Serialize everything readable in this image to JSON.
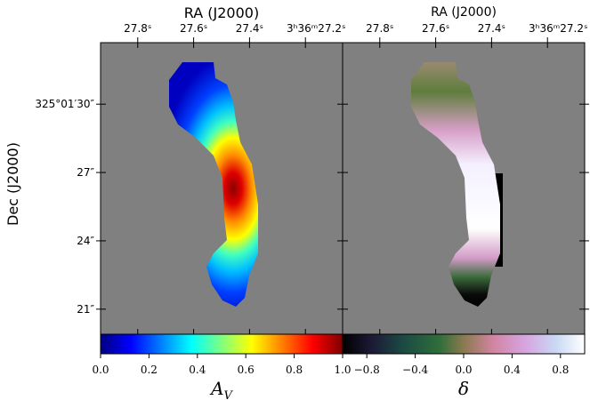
{
  "chart_data": [
    {
      "type": "image",
      "x_label": "RA (J2000)",
      "y_label": "Dec (J2000)",
      "xlim": [
        27.933,
        27.067
      ],
      "ylim": [
        19.9,
        32.7
      ],
      "xticks": [
        {
          "value": 27.8,
          "label": "27.8ˢ"
        },
        {
          "value": 27.6,
          "label": "27.6ˢ"
        },
        {
          "value": 27.4,
          "label": "27.4ˢ"
        },
        {
          "value": 27.2,
          "label": "3ʰ36ᵐ27.2ˢ"
        }
      ],
      "yticks": [
        {
          "value": 30,
          "label": "325°01′30″"
        },
        {
          "value": 27,
          "label": "27″"
        },
        {
          "value": 24,
          "label": "24″"
        },
        {
          "value": 21,
          "label": "21″"
        }
      ],
      "colorbar": {
        "label": {
          "base": "A",
          "sub": "V"
        },
        "colormap": "jet",
        "clim": [
          0,
          1
        ],
        "ticks": [
          {
            "value": 0,
            "label": "0.0"
          },
          0.2,
          0.4,
          0.6,
          0.8,
          {
            "value": 1,
            "label": "1.0"
          }
        ]
      }
    },
    {
      "type": "image",
      "x_label": "RA (J2000)",
      "xlim": [
        27.933,
        27.067
      ],
      "ylim": [
        19.9,
        32.7
      ],
      "xticks": [
        {
          "value": 27.8,
          "label": "27.8ˢ"
        },
        {
          "value": 27.6,
          "label": "27.6ˢ"
        },
        {
          "value": 27.4,
          "label": "27.4ˢ"
        },
        {
          "value": 27.2,
          "label": "3ʰ36ᵐ27.2ˢ"
        }
      ],
      "colorbar": {
        "label": {
          "base": "δ"
        },
        "colormap": "cubehelix",
        "clim": [
          -1,
          1
        ],
        "ticks": [
          {
            "value": -0.8,
            "label": "−0.8"
          },
          {
            "value": -0.4,
            "label": "−0.4"
          },
          {
            "value": 0,
            "label": "0.0"
          },
          0.4,
          0.8
        ]
      }
    }
  ]
}
